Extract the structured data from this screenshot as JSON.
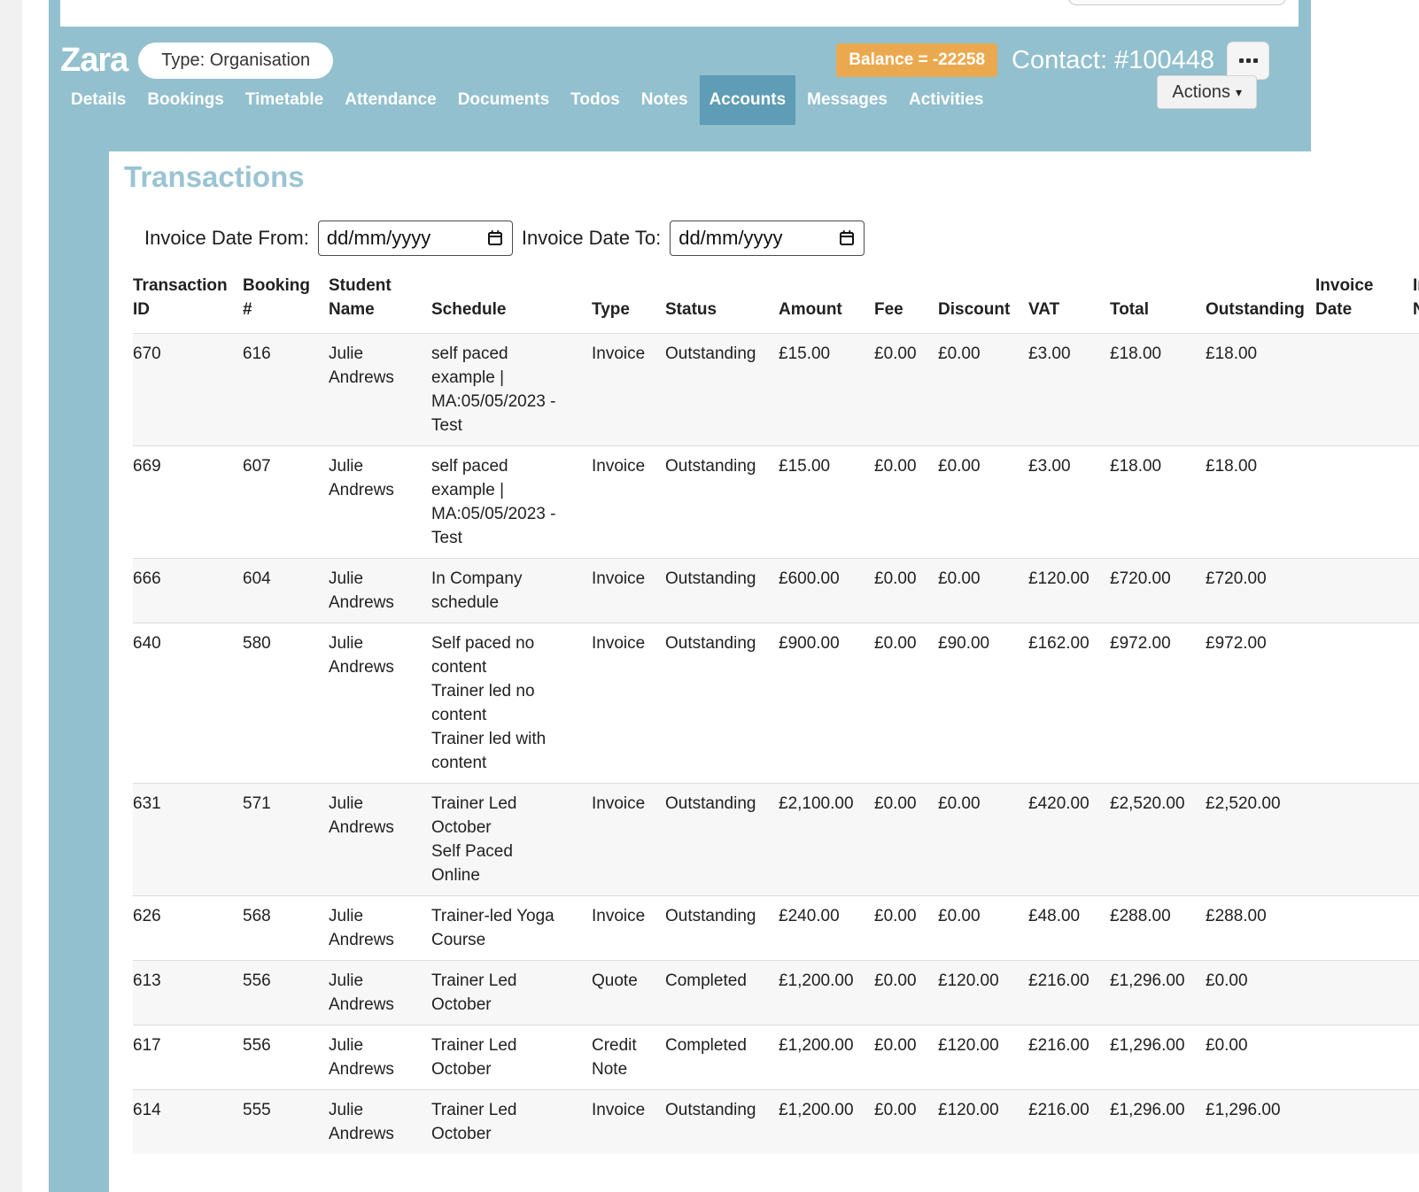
{
  "colors": {
    "teal": "#92c0ce",
    "active-tab": "#5f9cb5",
    "orange": "#eba94f",
    "heading": "#9ac4d3",
    "stripe": "#f7f7f7"
  },
  "header": {
    "contact_name": "Zara",
    "type_pill": "Type: Organisation",
    "balance_badge": "Balance = -22258",
    "contact_id": "Contact: #100448",
    "actions_label": "Actions",
    "tabs": [
      {
        "label": "Details",
        "active": false
      },
      {
        "label": "Bookings",
        "active": false
      },
      {
        "label": "Timetable",
        "active": false
      },
      {
        "label": "Attendance",
        "active": false
      },
      {
        "label": "Documents",
        "active": false
      },
      {
        "label": "Todos",
        "active": false
      },
      {
        "label": "Notes",
        "active": false
      },
      {
        "label": "Accounts",
        "active": true
      },
      {
        "label": "Messages",
        "active": false
      },
      {
        "label": "Activities",
        "active": false
      }
    ]
  },
  "section": {
    "title": "Transactions",
    "filters": {
      "from_label": "Invoice Date From:",
      "to_label": "Invoice Date To:",
      "date_placeholder": "dd/mm/yyyy"
    }
  },
  "table": {
    "columns": [
      "Transaction ID",
      "Booking #",
      "Student Name",
      "Schedule",
      "Type",
      "Status",
      "Amount",
      "Fee",
      "Discount",
      "VAT",
      "Total",
      "Outstanding",
      "Invoice Date",
      "Invoice Number"
    ],
    "rows": [
      {
        "transaction_id": "670",
        "booking": "616",
        "student": "Julie Andrews",
        "schedule": [
          "self paced example | MA:05/05/2023 - Test"
        ],
        "type": "Invoice",
        "status": "Outstanding",
        "amount": "£15.00",
        "fee": "£0.00",
        "discount": "£0.00",
        "vat": "£3.00",
        "total": "£18.00",
        "outstanding": "£18.00",
        "invoice_date": "",
        "invoice_number": ""
      },
      {
        "transaction_id": "669",
        "booking": "607",
        "student": "Julie Andrews",
        "schedule": [
          "self paced example | MA:05/05/2023 - Test"
        ],
        "type": "Invoice",
        "status": "Outstanding",
        "amount": "£15.00",
        "fee": "£0.00",
        "discount": "£0.00",
        "vat": "£3.00",
        "total": "£18.00",
        "outstanding": "£18.00",
        "invoice_date": "",
        "invoice_number": ""
      },
      {
        "transaction_id": "666",
        "booking": "604",
        "student": "Julie Andrews",
        "schedule": [
          "In Company schedule"
        ],
        "type": "Invoice",
        "status": "Outstanding",
        "amount": "£600.00",
        "fee": "£0.00",
        "discount": "£0.00",
        "vat": "£120.00",
        "total": "£720.00",
        "outstanding": "£720.00",
        "invoice_date": "",
        "invoice_number": ""
      },
      {
        "transaction_id": "640",
        "booking": "580",
        "student": "Julie Andrews",
        "schedule": [
          "Self paced no content",
          "Trainer led no content",
          "Trainer led with content"
        ],
        "type": "Invoice",
        "status": "Outstanding",
        "amount": "£900.00",
        "fee": "£0.00",
        "discount": "£90.00",
        "vat": "£162.00",
        "total": "£972.00",
        "outstanding": "£972.00",
        "invoice_date": "",
        "invoice_number": ""
      },
      {
        "transaction_id": "631",
        "booking": "571",
        "student": "Julie Andrews",
        "schedule": [
          "Trainer Led October",
          "Self Paced Online"
        ],
        "type": "Invoice",
        "status": "Outstanding",
        "amount": "£2,100.00",
        "fee": "£0.00",
        "discount": "£0.00",
        "vat": "£420.00",
        "total": "£2,520.00",
        "outstanding": "£2,520.00",
        "invoice_date": "",
        "invoice_number": ""
      },
      {
        "transaction_id": "626",
        "booking": "568",
        "student": "Julie Andrews",
        "schedule": [
          "Trainer-led Yoga Course"
        ],
        "type": "Invoice",
        "status": "Outstanding",
        "amount": "£240.00",
        "fee": "£0.00",
        "discount": "£0.00",
        "vat": "£48.00",
        "total": "£288.00",
        "outstanding": "£288.00",
        "invoice_date": "",
        "invoice_number": ""
      },
      {
        "transaction_id": "613",
        "booking": "556",
        "student": "Julie Andrews",
        "schedule": [
          "Trainer Led October"
        ],
        "type": "Quote",
        "status": "Completed",
        "amount": "£1,200.00",
        "fee": "£0.00",
        "discount": "£120.00",
        "vat": "£216.00",
        "total": "£1,296.00",
        "outstanding": "£0.00",
        "invoice_date": "",
        "invoice_number": ""
      },
      {
        "transaction_id": "617",
        "booking": "556",
        "student": "Julie Andrews",
        "schedule": [
          "Trainer Led October"
        ],
        "type": "Credit Note",
        "status": "Completed",
        "amount": "£1,200.00",
        "fee": "£0.00",
        "discount": "£120.00",
        "vat": "£216.00",
        "total": "£1,296.00",
        "outstanding": "£0.00",
        "invoice_date": "",
        "invoice_number": ""
      },
      {
        "transaction_id": "614",
        "booking": "555",
        "student": "Julie Andrews",
        "schedule": [
          "Trainer Led October"
        ],
        "type": "Invoice",
        "status": "Outstanding",
        "amount": "£1,200.00",
        "fee": "£0.00",
        "discount": "£120.00",
        "vat": "£216.00",
        "total": "£1,296.00",
        "outstanding": "£1,296.00",
        "invoice_date": "",
        "invoice_number": ""
      }
    ]
  }
}
